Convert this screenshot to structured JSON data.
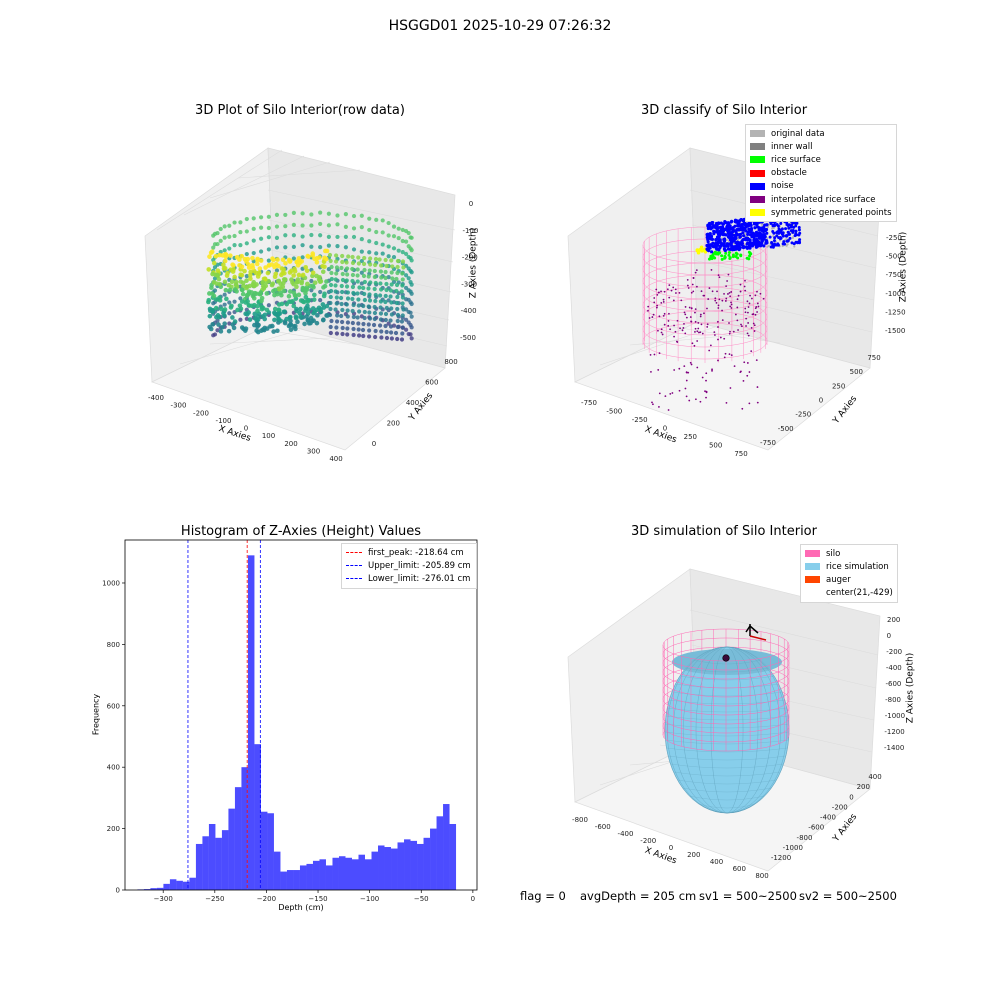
{
  "suptitle": "HSGGD01 2025-10-29 07:26:32",
  "panels": {
    "raw": {
      "title": "3D Plot of Silo Interior(row data)",
      "xlabel": "X Axies",
      "ylabel": "Y Axies",
      "zlabel": "Z Axies (Depth)",
      "xticks": [
        "-400",
        "-300",
        "-200",
        "-100",
        "0",
        "100",
        "200",
        "300",
        "400"
      ],
      "yticks": [
        "0",
        "200",
        "400",
        "600",
        "800"
      ],
      "zticks": [
        "0",
        "-100",
        "-200",
        "-300",
        "-400",
        "-500"
      ]
    },
    "classify": {
      "title": "3D classify of Silo Interior",
      "xlabel": "X Axies",
      "ylabel": "Y Axies",
      "zlabel": "Z Axies (Depth)",
      "xticks": [
        "-750",
        "-500",
        "-250",
        "0",
        "250",
        "500",
        "750"
      ],
      "yticks": [
        "-750",
        "-500",
        "-250",
        "0",
        "250",
        "500",
        "750"
      ],
      "zticks": [
        "-250",
        "-500",
        "-750",
        "-1000",
        "-1250",
        "-1500"
      ],
      "legend": [
        {
          "label": "original data",
          "color": "#b3b3b3"
        },
        {
          "label": "inner wall",
          "color": "#808080"
        },
        {
          "label": "rice surface",
          "color": "#00ff00"
        },
        {
          "label": "obstacle",
          "color": "#ff0000"
        },
        {
          "label": "noise",
          "color": "#0000ff"
        },
        {
          "label": "interpolated rice surface",
          "color": "#800080"
        },
        {
          "label": "symmetric generated points",
          "color": "#ffff00"
        }
      ]
    },
    "simulation": {
      "title": "3D simulation of Silo Interior",
      "xlabel": "X Axies",
      "ylabel": "Y Axies",
      "zlabel": "Z Axies (Depth)",
      "xticks": [
        "-800",
        "-600",
        "-400",
        "-200",
        "0",
        "200",
        "400",
        "600",
        "800"
      ],
      "yticks": [
        "-1200",
        "-1000",
        "-800",
        "-600",
        "-400",
        "-200",
        "0",
        "200",
        "400"
      ],
      "zticks": [
        "200",
        "0",
        "-200",
        "-400",
        "-600",
        "-800",
        "-1000",
        "-1200",
        "-1400"
      ],
      "legend": [
        {
          "label": "silo",
          "color": "#ff69b4"
        },
        {
          "label": "rice simulation",
          "color": "#87ceeb"
        },
        {
          "label": "auger",
          "color": "#ff4500"
        },
        {
          "label": "center(21,-429)",
          "color": ""
        }
      ]
    }
  },
  "status": {
    "flag": "flag = 0",
    "avg_depth": "avgDepth = 205 cm",
    "sv1": "sv1 = 500~2500",
    "sv2": "sv2 = 500~2500"
  },
  "chart_data": [
    {
      "type": "bar",
      "title": "Histogram of Z-Axies (Height) Values",
      "xlabel": "Depth (cm)",
      "ylabel": "Frequency",
      "xlim": [
        -337,
        4
      ],
      "ylim": [
        0,
        1140
      ],
      "xticks": [
        -300,
        -250,
        -200,
        -150,
        -100,
        -50,
        0
      ],
      "yticks": [
        0,
        200,
        400,
        600,
        800,
        1000
      ],
      "bin_start": -325,
      "bin_width": 6.3,
      "values": [
        2,
        3,
        6,
        7,
        20,
        35,
        30,
        27,
        40,
        150,
        175,
        215,
        170,
        195,
        265,
        335,
        400,
        1090,
        475,
        255,
        250,
        125,
        60,
        65,
        65,
        80,
        85,
        95,
        100,
        80,
        105,
        110,
        105,
        100,
        115,
        100,
        125,
        145,
        140,
        135,
        155,
        165,
        160,
        150,
        170,
        200,
        240,
        280,
        215
      ],
      "color": "#0000ff",
      "vlines": [
        {
          "label": "first_peak: -218.64 cm",
          "x": -218.64,
          "color": "#ff0000"
        },
        {
          "label": "Upper_limit: -205.89 cm",
          "x": -205.89,
          "color": "#0000ff"
        },
        {
          "label": "Lower_limit: -276.01 cm",
          "x": -276.01,
          "color": "#0000ff"
        }
      ],
      "legend_position": "upper right"
    }
  ]
}
